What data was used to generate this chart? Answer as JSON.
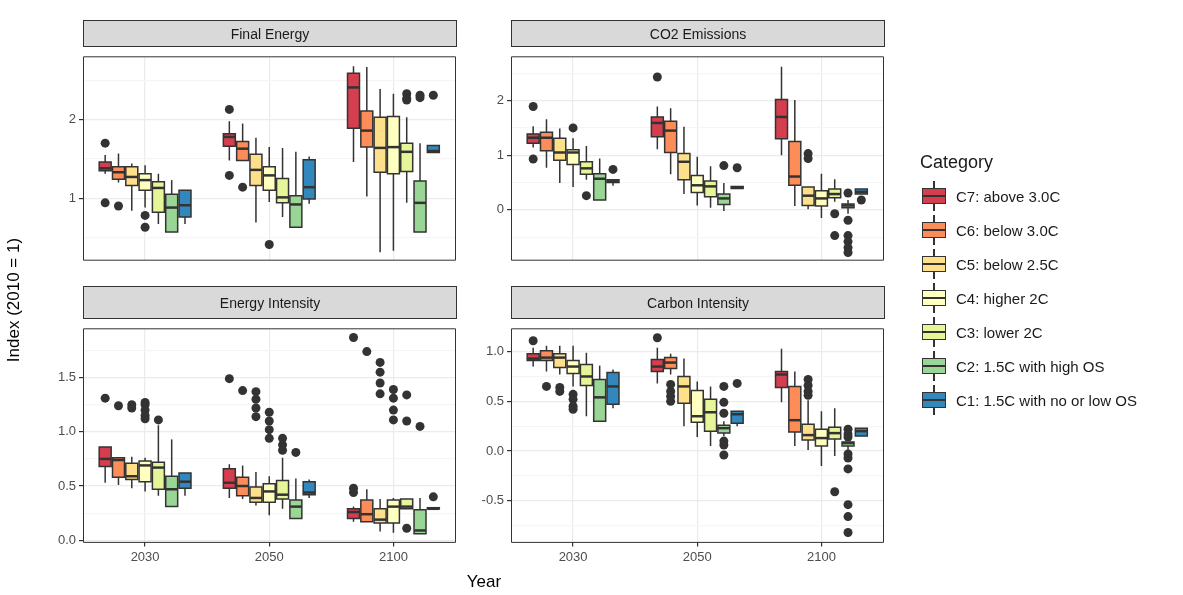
{
  "chart_data": [
    {
      "type": "box",
      "title": "Final Energy",
      "ylabel": "Index (2010 = 1)",
      "legend_title": "Category",
      "legend": "right",
      "grid": true,
      "tick_labels": "y",
      "categories": [
        "2030",
        "2050",
        "2100"
      ],
      "ylim": [
        0.21,
        2.8
      ],
      "yticks": [
        {
          "value": 0.5,
          "label": null
        },
        1,
        {
          "value": 1.5,
          "label": null
        },
        2,
        {
          "value": 2.5,
          "label": null
        }
      ],
      "series": [
        {
          "name": "C7: above 3.0C",
          "color": "#d53e4f",
          "boxes": [
            {
              "low": 1.31,
              "q1": 1.35,
              "median": 1.38,
              "q3": 1.46,
              "high": 1.55,
              "outliers": [
                1.7,
                0.94
              ]
            },
            {
              "low": 1.48,
              "q1": 1.66,
              "median": 1.78,
              "q3": 1.82,
              "high": 1.98,
              "outliers": [
                2.13,
                1.29
              ]
            },
            {
              "low": 1.46,
              "q1": 1.89,
              "median": 2.41,
              "q3": 2.59,
              "high": 2.68
            }
          ]
        },
        {
          "name": "C6: below 3.0C",
          "color": "#fc8d59",
          "boxes": [
            {
              "low": 1.2,
              "q1": 1.24,
              "median": 1.33,
              "q3": 1.4,
              "high": 1.57,
              "outliers": [
                0.9
              ]
            },
            {
              "low": 1.48,
              "q1": 1.48,
              "median": 1.63,
              "q3": 1.72,
              "high": 1.95,
              "outliers": [
                1.14
              ]
            },
            {
              "low": 1.02,
              "q1": 1.65,
              "median": 1.86,
              "q3": 2.11,
              "high": 2.67
            }
          ]
        },
        {
          "name": "C5: below 2.5C",
          "color": "#fee08b",
          "boxes": [
            {
              "low": 0.84,
              "q1": 1.16,
              "median": 1.27,
              "q3": 1.4,
              "high": 1.44
            },
            {
              "low": 0.69,
              "q1": 1.16,
              "median": 1.36,
              "q3": 1.56,
              "high": 1.77
            },
            {
              "low": 0.31,
              "q1": 1.33,
              "median": 1.64,
              "q3": 2.03,
              "high": 2.39
            }
          ]
        },
        {
          "name": "C4: higher 2C",
          "color": "#ffffbf",
          "boxes": [
            {
              "low": 0.88,
              "q1": 1.1,
              "median": 1.23,
              "q3": 1.31,
              "high": 1.42,
              "outliers": [
                0.78,
                0.63
              ]
            },
            {
              "low": 0.95,
              "q1": 1.1,
              "median": 1.29,
              "q3": 1.4,
              "high": 1.65,
              "outliers": [
                0.41
              ]
            },
            {
              "low": 0.33,
              "q1": 1.31,
              "median": 1.65,
              "q3": 2.04,
              "high": 2.33
            }
          ]
        },
        {
          "name": "C3: lower 2C",
          "color": "#e6f598",
          "boxes": [
            {
              "low": 0.67,
              "q1": 0.82,
              "median": 1.13,
              "q3": 1.21,
              "high": 1.31
            },
            {
              "low": 0.76,
              "q1": 0.94,
              "median": 1.01,
              "q3": 1.25,
              "high": 1.64
            },
            {
              "low": 0.94,
              "q1": 1.34,
              "median": 1.59,
              "q3": 1.7,
              "high": 2.03,
              "outliers": [
                2.33,
                2.27,
                2.25
              ]
            }
          ]
        },
        {
          "name": "C2: 1.5C with high OS",
          "color": "#99d594",
          "boxes": [
            {
              "low": 0.57,
              "q1": 0.57,
              "median": 0.88,
              "q3": 1.05,
              "high": 1.23
            },
            {
              "low": 0.63,
              "q1": 0.63,
              "median": 0.92,
              "q3": 1.03,
              "high": 1.59
            },
            {
              "low": 0.57,
              "q1": 0.57,
              "median": 0.94,
              "q3": 1.22,
              "high": 1.7,
              "outliers": [
                2.31,
                2.28
              ]
            }
          ]
        },
        {
          "name": "C1: 1.5C with no or low OS",
          "color": "#3288bd",
          "boxes": [
            {
              "low": 0.67,
              "q1": 0.76,
              "median": 0.91,
              "q3": 1.1,
              "high": 1.1
            },
            {
              "low": 0.93,
              "q1": 0.99,
              "median": 1.14,
              "q3": 1.49,
              "high": 1.53
            },
            {
              "low": 1.58,
              "q1": 1.58,
              "median": 1.6,
              "q3": 1.67,
              "high": 1.67,
              "outliers": [
                2.31
              ]
            }
          ]
        }
      ]
    },
    {
      "type": "box",
      "title": "CO2 Emissions",
      "grid": true,
      "tick_labels": "y",
      "categories": [
        "2030",
        "2050",
        "2100"
      ],
      "ylim": [
        -0.92,
        2.8
      ],
      "yticks": [
        {
          "value": -0.5,
          "label": null
        },
        0,
        {
          "value": 0.5,
          "label": null
        },
        1,
        {
          "value": 1.5,
          "label": null
        },
        2,
        {
          "value": 2.5,
          "label": null
        }
      ],
      "series": [
        {
          "color": "#d53e4f",
          "boxes": [
            {
              "low": 1.14,
              "q1": 1.22,
              "median": 1.32,
              "q3": 1.39,
              "high": 1.53,
              "outliers": [
                1.89,
                0.93
              ]
            },
            {
              "low": 1.11,
              "q1": 1.34,
              "median": 1.59,
              "q3": 1.7,
              "high": 1.89,
              "outliers": [
                2.43
              ]
            },
            {
              "low": 1.0,
              "q1": 1.3,
              "median": 1.7,
              "q3": 2.02,
              "high": 2.62
            }
          ]
        },
        {
          "color": "#fc8d59",
          "boxes": [
            {
              "low": 0.77,
              "q1": 1.08,
              "median": 1.32,
              "q3": 1.42,
              "high": 1.66
            },
            {
              "low": 0.65,
              "q1": 1.05,
              "median": 1.45,
              "q3": 1.62,
              "high": 1.86
            },
            {
              "low": 0.07,
              "q1": 0.45,
              "median": 0.61,
              "q3": 1.25,
              "high": 2.01
            }
          ]
        },
        {
          "color": "#fee08b",
          "boxes": [
            {
              "low": 0.49,
              "q1": 0.91,
              "median": 1.05,
              "q3": 1.31,
              "high": 1.49
            },
            {
              "low": 0.29,
              "q1": 0.55,
              "median": 0.88,
              "q3": 1.03,
              "high": 1.52
            },
            {
              "low": 0.01,
              "q1": 0.08,
              "median": 0.26,
              "q3": 0.42,
              "high": 0.42,
              "outliers": [
                1.03,
                0.94
              ]
            }
          ]
        },
        {
          "color": "#ffffbf",
          "boxes": [
            {
              "low": 0.42,
              "q1": 0.83,
              "median": 1.05,
              "q3": 1.1,
              "high": 1.31,
              "outliers": [
                1.5
              ]
            },
            {
              "low": 0.08,
              "q1": 0.32,
              "median": 0.45,
              "q3": 0.63,
              "high": 0.97
            },
            {
              "low": -0.15,
              "q1": 0.07,
              "median": 0.21,
              "q3": 0.35,
              "high": 0.66
            }
          ]
        },
        {
          "color": "#e6f598",
          "boxes": [
            {
              "low": 0.55,
              "q1": 0.65,
              "median": 0.76,
              "q3": 0.88,
              "high": 1.17,
              "outliers": [
                0.26
              ]
            },
            {
              "low": 0.04,
              "q1": 0.24,
              "median": 0.43,
              "q3": 0.53,
              "high": 0.8
            },
            {
              "low": 0.15,
              "q1": 0.22,
              "median": 0.29,
              "q3": 0.38,
              "high": 0.56,
              "outliers": [
                -0.07,
                -0.47
              ]
            }
          ]
        },
        {
          "color": "#99d594",
          "boxes": [
            {
              "low": 0.18,
              "q1": 0.18,
              "median": 0.57,
              "q3": 0.66,
              "high": 0.94
            },
            {
              "low": -0.02,
              "q1": 0.1,
              "median": 0.21,
              "q3": 0.29,
              "high": 0.49,
              "outliers": [
                0.81
              ]
            },
            {
              "low": -0.07,
              "q1": 0.04,
              "median": 0.08,
              "q3": 0.11,
              "high": 0.18,
              "outliers": [
                0.31,
                -0.19,
                -0.47,
                -0.58,
                -0.69,
                -0.78
              ]
            }
          ]
        },
        {
          "color": "#3288bd",
          "boxes": [
            {
              "low": 0.44,
              "q1": 0.5,
              "median": 0.52,
              "q3": 0.55,
              "high": 0.55,
              "outliers": [
                0.74
              ]
            },
            {
              "low": 0.39,
              "q1": 0.39,
              "median": 0.41,
              "q3": 0.43,
              "high": 0.43,
              "outliers": [
                0.77
              ]
            },
            {
              "low": 0.29,
              "q1": 0.29,
              "median": 0.33,
              "q3": 0.38,
              "high": 0.38,
              "outliers": [
                0.18
              ]
            }
          ]
        }
      ]
    },
    {
      "type": "box",
      "title": "Energy Intensity",
      "xlabel": "Year",
      "grid": true,
      "categories": [
        "2030",
        "2050",
        "2100"
      ],
      "ylim": [
        -0.02,
        1.95
      ],
      "yticks": [
        {
          "value": 0,
          "label": "0.0"
        },
        {
          "value": 0.25,
          "label": null
        },
        {
          "value": 0.5,
          "label": "0.5"
        },
        {
          "value": 0.75,
          "label": null
        },
        {
          "value": 1,
          "label": "1.0"
        },
        {
          "value": 1.25,
          "label": null
        },
        {
          "value": 1.5,
          "label": "1.5"
        },
        {
          "value": 1.75,
          "label": null
        }
      ],
      "series": [
        {
          "color": "#d53e4f",
          "boxes": [
            {
              "low": 0.53,
              "q1": 0.68,
              "median": 0.75,
              "q3": 0.86,
              "high": 0.86,
              "outliers": [
                1.31
              ]
            },
            {
              "low": 0.39,
              "q1": 0.48,
              "median": 0.53,
              "q3": 0.66,
              "high": 0.7,
              "outliers": [
                1.49
              ]
            },
            {
              "low": 0.17,
              "q1": 0.2,
              "median": 0.26,
              "q3": 0.29,
              "high": 0.31,
              "outliers": [
                1.87,
                0.48,
                0.44
              ]
            }
          ]
        },
        {
          "color": "#fc8d59",
          "boxes": [
            {
              "low": 0.51,
              "q1": 0.58,
              "median": 0.74,
              "q3": 0.76,
              "high": 0.76,
              "outliers": [
                1.24
              ]
            },
            {
              "low": 0.38,
              "q1": 0.41,
              "median": 0.5,
              "q3": 0.58,
              "high": 0.69,
              "outliers": [
                1.38
              ]
            },
            {
              "low": 0.17,
              "q1": 0.17,
              "median": 0.24,
              "q3": 0.37,
              "high": 0.47,
              "outliers": [
                1.74
              ]
            }
          ]
        },
        {
          "color": "#fee08b",
          "boxes": [
            {
              "low": 0.48,
              "q1": 0.56,
              "median": 0.59,
              "q3": 0.71,
              "high": 0.77,
              "outliers": [
                1.25,
                1.22
              ]
            },
            {
              "low": 0.32,
              "q1": 0.35,
              "median": 0.39,
              "q3": 0.49,
              "high": 0.63,
              "outliers": [
                1.37,
                1.3,
                1.22,
                1.14
              ]
            },
            {
              "low": 0.08,
              "q1": 0.16,
              "median": 0.19,
              "q3": 0.29,
              "high": 0.38,
              "outliers": [
                1.64,
                1.55,
                1.45,
                1.35
              ]
            }
          ]
        },
        {
          "color": "#ffffbf",
          "boxes": [
            {
              "low": 0.45,
              "q1": 0.54,
              "median": 0.69,
              "q3": 0.73,
              "high": 0.76,
              "outliers": [
                1.27,
                1.25,
                1.2,
                1.15,
                1.12
              ]
            },
            {
              "low": 0.23,
              "q1": 0.35,
              "median": 0.45,
              "q3": 0.52,
              "high": 0.59,
              "outliers": [
                1.18,
                1.1,
                1.02,
                0.94
              ]
            },
            {
              "low": 0.07,
              "q1": 0.16,
              "median": 0.31,
              "q3": 0.37,
              "high": 0.39,
              "outliers": [
                1.39,
                1.31,
                1.2,
                1.11
              ]
            }
          ]
        },
        {
          "color": "#e6f598",
          "boxes": [
            {
              "low": 0.41,
              "q1": 0.47,
              "median": 0.67,
              "q3": 0.72,
              "high": 1.06,
              "outliers": [
                1.11
              ]
            },
            {
              "low": 0.29,
              "q1": 0.38,
              "median": 0.42,
              "q3": 0.55,
              "high": 0.76,
              "outliers": [
                0.94,
                0.88,
                0.83
              ]
            },
            {
              "low": 0.29,
              "q1": 0.29,
              "median": 0.31,
              "q3": 0.38,
              "high": 0.38,
              "outliers": [
                1.34,
                1.1,
                0.11
              ]
            }
          ]
        },
        {
          "color": "#99d594",
          "boxes": [
            {
              "low": 0.31,
              "q1": 0.31,
              "median": 0.47,
              "q3": 0.59,
              "high": 0.93
            },
            {
              "low": 0.2,
              "q1": 0.2,
              "median": 0.31,
              "q3": 0.37,
              "high": 0.57,
              "outliers": [
                0.81
              ]
            },
            {
              "low": 0.06,
              "q1": 0.06,
              "median": 0.09,
              "q3": 0.28,
              "high": 0.39,
              "outliers": [
                1.05
              ]
            }
          ]
        },
        {
          "color": "#3288bd",
          "boxes": [
            {
              "low": 0.41,
              "q1": 0.48,
              "median": 0.54,
              "q3": 0.62,
              "high": 0.62
            },
            {
              "low": 0.39,
              "q1": 0.42,
              "median": 0.44,
              "q3": 0.54,
              "high": 0.56
            },
            {
              "low": 0.29,
              "q1": 0.29,
              "median": 0.29,
              "q3": 0.3,
              "high": 0.3,
              "outliers": [
                0.4
              ]
            }
          ]
        }
      ]
    },
    {
      "type": "box",
      "title": "Carbon Intensity",
      "grid": true,
      "categories": [
        "2030",
        "2050",
        "2100"
      ],
      "ylim": [
        -0.92,
        1.23
      ],
      "yticks": [
        {
          "value": -0.75,
          "label": null
        },
        {
          "value": -0.5,
          "label": "-0.5"
        },
        {
          "value": -0.25,
          "label": null
        },
        {
          "value": 0,
          "label": "0.0"
        },
        {
          "value": 0.25,
          "label": null
        },
        {
          "value": 0.5,
          "label": "0.5"
        },
        {
          "value": 0.75,
          "label": null
        },
        {
          "value": 1,
          "label": "1.0"
        }
      ],
      "series": [
        {
          "color": "#d53e4f",
          "boxes": [
            {
              "low": 0.85,
              "q1": 0.91,
              "median": 0.93,
              "q3": 0.98,
              "high": 1.04,
              "outliers": [
                1.11
              ]
            },
            {
              "low": 0.68,
              "q1": 0.8,
              "median": 0.85,
              "q3": 0.92,
              "high": 1.04,
              "outliers": [
                1.14
              ]
            },
            {
              "low": 0.49,
              "q1": 0.64,
              "median": 0.77,
              "q3": 0.8,
              "high": 1.03
            }
          ]
        },
        {
          "color": "#fc8d59",
          "boxes": [
            {
              "low": 0.8,
              "q1": 0.91,
              "median": 0.94,
              "q3": 1.01,
              "high": 1.06,
              "outliers": [
                0.65
              ]
            },
            {
              "low": 0.77,
              "q1": 0.83,
              "median": 0.89,
              "q3": 0.94,
              "high": 0.98,
              "outliers": [
                0.67,
                0.6,
                0.55,
                0.5
              ]
            },
            {
              "low": 0.05,
              "q1": 0.19,
              "median": 0.31,
              "q3": 0.65,
              "high": 0.8
            }
          ]
        },
        {
          "color": "#fee08b",
          "boxes": [
            {
              "low": 0.77,
              "q1": 0.84,
              "median": 0.94,
              "q3": 0.98,
              "high": 1.06,
              "outliers": [
                0.64,
                0.6
              ]
            },
            {
              "low": 0.25,
              "q1": 0.48,
              "median": 0.65,
              "q3": 0.75,
              "high": 0.93
            },
            {
              "low": 0.01,
              "q1": 0.11,
              "median": 0.16,
              "q3": 0.27,
              "high": 0.51,
              "outliers": [
                0.72,
                0.66,
                0.6,
                0.56
              ]
            }
          ]
        },
        {
          "color": "#ffffbf",
          "boxes": [
            {
              "low": 0.65,
              "q1": 0.78,
              "median": 0.85,
              "q3": 0.91,
              "high": 1.06,
              "outliers": [
                0.57,
                0.52,
                0.45,
                0.42
              ]
            },
            {
              "low": 0.14,
              "q1": 0.29,
              "median": 0.35,
              "q3": 0.61,
              "high": 0.7
            },
            {
              "low": -0.15,
              "q1": 0.05,
              "median": 0.13,
              "q3": 0.22,
              "high": 0.4
            }
          ]
        },
        {
          "color": "#e6f598",
          "boxes": [
            {
              "low": 0.35,
              "q1": 0.66,
              "median": 0.75,
              "q3": 0.87,
              "high": 0.99
            },
            {
              "low": 0.05,
              "q1": 0.2,
              "median": 0.39,
              "q3": 0.52,
              "high": 0.65
            },
            {
              "low": -0.05,
              "q1": 0.12,
              "median": 0.18,
              "q3": 0.24,
              "high": 0.43,
              "outliers": [
                -0.41
              ]
            }
          ]
        },
        {
          "color": "#99d594",
          "boxes": [
            {
              "low": 0.3,
              "q1": 0.3,
              "median": 0.54,
              "q3": 0.72,
              "high": 0.86
            },
            {
              "low": 0.15,
              "q1": 0.18,
              "median": 0.23,
              "q3": 0.26,
              "high": 0.3,
              "outliers": [
                0.65,
                0.49,
                0.38,
                0.1,
                0.06,
                -0.04
              ]
            },
            {
              "low": 0.01,
              "q1": 0.05,
              "median": 0.08,
              "q3": 0.09,
              "high": 0.09,
              "outliers": [
                0.22,
                0.17,
                0.14,
                -0.03,
                -0.07,
                -0.18,
                -0.54,
                -0.66,
                -0.82
              ]
            }
          ]
        },
        {
          "color": "#3288bd",
          "boxes": [
            {
              "low": 0.43,
              "q1": 0.47,
              "median": 0.65,
              "q3": 0.79,
              "high": 0.82
            },
            {
              "low": 0.25,
              "q1": 0.28,
              "median": 0.37,
              "q3": 0.4,
              "high": 0.4,
              "outliers": [
                0.68
              ]
            },
            {
              "low": 0.15,
              "q1": 0.15,
              "median": 0.2,
              "q3": 0.23,
              "high": 0.23
            }
          ]
        }
      ]
    }
  ]
}
